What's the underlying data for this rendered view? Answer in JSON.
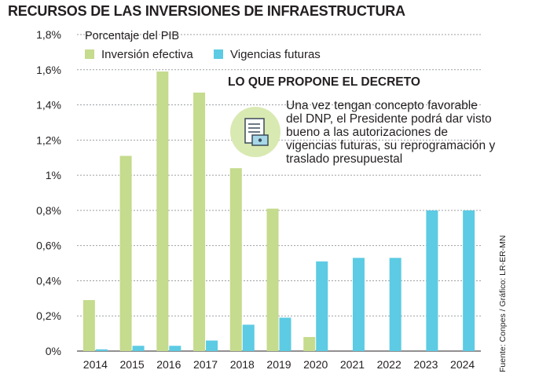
{
  "chart_data": {
    "type": "bar",
    "title": "RECURSOS DE LAS INVERSIONES DE INFRAESTRUCTURA",
    "unit_label": "Porcentaje del PIB",
    "categories": [
      "2014",
      "2015",
      "2016",
      "2017",
      "2018",
      "2019",
      "2020",
      "2021",
      "2022",
      "2023",
      "2024"
    ],
    "series": [
      {
        "name": "Inversión efectiva",
        "color": "#c5db8d",
        "values": [
          0.29,
          1.11,
          1.59,
          1.47,
          1.04,
          0.81,
          0.08,
          0,
          0,
          0,
          0
        ]
      },
      {
        "name": "Vigencias futuras",
        "color": "#5ccbe3",
        "values": [
          0.01,
          0.03,
          0.03,
          0.06,
          0.15,
          0.19,
          0.51,
          0.53,
          0.53,
          0.8,
          0.8
        ]
      }
    ],
    "ylim": [
      0,
      1.8
    ],
    "yticks": [
      "0%",
      "0,2%",
      "0,4%",
      "0,6%",
      "0,8%",
      "1%",
      "1,2%",
      "1,4%",
      "1,6%",
      "1,8%"
    ],
    "grid": true,
    "legend_position": "top-left",
    "callout": {
      "title": "LO QUE PROPONE EL DECRETO",
      "text": "Una vez tengan concepto favorable del DNP, el Presidente podrá dar visto bueno a las autorizaciones de vigencias futuras, su reprogramación y traslado presupuestal",
      "icon": "document-icon"
    },
    "source": "Fuente: Conpes / Gráfico: LR-ER-MN"
  }
}
